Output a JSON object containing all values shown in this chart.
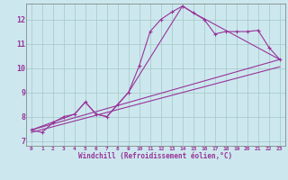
{
  "xlabel": "Windchill (Refroidissement éolien,°C)",
  "background_color": "#cce8ee",
  "grid_color": "#aacccc",
  "line_color": "#993399",
  "x_ticks": [
    0,
    1,
    2,
    3,
    4,
    5,
    6,
    7,
    8,
    9,
    10,
    11,
    12,
    13,
    14,
    15,
    16,
    17,
    18,
    19,
    20,
    21,
    22,
    23
  ],
  "y_ticks": [
    7,
    8,
    9,
    10,
    11,
    12
  ],
  "xlim": [
    -0.5,
    23.5
  ],
  "ylim": [
    6.8,
    12.65
  ],
  "series1_x": [
    0,
    1,
    2,
    3,
    4,
    5,
    6,
    7,
    8,
    9,
    10,
    11,
    12,
    13,
    14,
    15,
    16,
    17,
    18,
    19,
    20,
    21,
    22,
    23
  ],
  "series1_y": [
    7.45,
    7.35,
    7.75,
    8.0,
    8.1,
    8.6,
    8.1,
    8.0,
    8.5,
    9.0,
    10.1,
    11.5,
    12.0,
    12.3,
    12.55,
    12.27,
    12.0,
    11.4,
    11.5,
    11.5,
    11.5,
    11.55,
    10.85,
    10.35
  ],
  "series2_x": [
    0,
    23
  ],
  "series2_y": [
    7.45,
    10.35
  ],
  "series3_x": [
    0,
    4,
    5,
    6,
    7,
    8,
    9,
    14,
    15,
    23
  ],
  "series3_y": [
    7.45,
    8.1,
    8.6,
    8.1,
    8.0,
    8.5,
    9.0,
    12.55,
    12.27,
    10.35
  ],
  "series4_x": [
    0,
    23
  ],
  "series4_y": [
    7.35,
    10.05
  ]
}
